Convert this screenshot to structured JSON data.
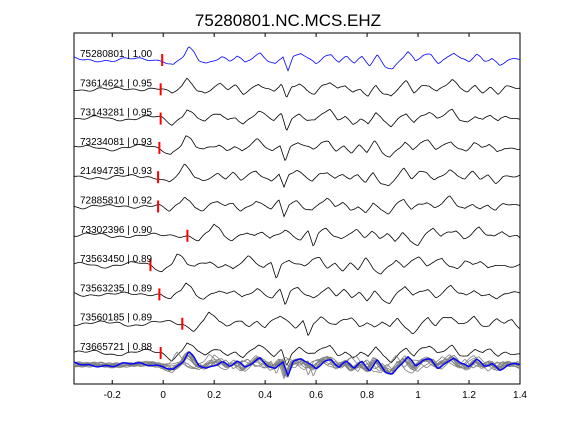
{
  "chart_data": {
    "type": "line",
    "title": "75280801.NC.MCS.EHZ",
    "xlabel": "",
    "ylabel": "",
    "xlim": [
      -0.35,
      1.4
    ],
    "xticks": [
      -0.2,
      0,
      0.2,
      0.4,
      0.6,
      0.8,
      1,
      1.2,
      1.4
    ],
    "xtick_labels": [
      "-0.2",
      "0",
      "0.2",
      "0.4",
      "0.6",
      "0.8",
      "1",
      "1.2",
      "1.4"
    ],
    "grid": false,
    "colors": {
      "master": "#0000ff",
      "trace": "#000000",
      "stack": "#808080",
      "pick": "#ff0000"
    },
    "series": [
      {
        "name": "75280801 | 1.00",
        "pick": -0.004,
        "master": true
      },
      {
        "name": "73614621 | 0.95",
        "pick": -0.01
      },
      {
        "name": "73143281 | 0.95",
        "pick": -0.01
      },
      {
        "name": "73234081 | 0.93",
        "pick": -0.015
      },
      {
        "name": "21494735 | 0.93",
        "pick": -0.02
      },
      {
        "name": "72885810 | 0.92",
        "pick": -0.02
      },
      {
        "name": "73302396 | 0.90",
        "pick": 0.095
      },
      {
        "name": "73563450 | 0.89",
        "pick": -0.05
      },
      {
        "name": "73563235 | 0.89",
        "pick": -0.015
      },
      {
        "name": "73560185 | 0.89",
        "pick": 0.075
      },
      {
        "name": "73665721 | 0.88",
        "pick": -0.01
      }
    ],
    "waveform": {
      "t": [
        -0.35,
        -0.3,
        -0.25,
        -0.2,
        -0.15,
        -0.1,
        -0.05,
        0.0,
        0.04,
        0.08,
        0.1,
        0.12,
        0.14,
        0.17,
        0.2,
        0.23,
        0.26,
        0.29,
        0.32,
        0.35,
        0.38,
        0.41,
        0.44,
        0.47,
        0.49,
        0.51,
        0.54,
        0.57,
        0.6,
        0.63,
        0.66,
        0.69,
        0.72,
        0.75,
        0.78,
        0.81,
        0.84,
        0.87,
        0.9,
        0.93,
        0.96,
        0.99,
        1.02,
        1.05,
        1.08,
        1.11,
        1.14,
        1.17,
        1.2,
        1.23,
        1.26,
        1.29,
        1.32,
        1.35,
        1.4
      ],
      "amp": [
        0.05,
        0.0,
        0.05,
        -0.05,
        0.0,
        0.05,
        0.1,
        0.0,
        -0.4,
        0.2,
        0.8,
        0.5,
        0.0,
        -0.2,
        0.1,
        0.3,
        -0.1,
        0.2,
        -0.3,
        0.1,
        0.5,
        0.1,
        -0.2,
        0.3,
        -0.8,
        0.1,
        0.4,
        0.0,
        -0.2,
        0.3,
        0.5,
        -0.1,
        0.2,
        -0.3,
        0.1,
        -0.4,
        0.4,
        -0.3,
        -0.6,
        0.0,
        0.5,
        -0.2,
        0.3,
        0.4,
        -0.1,
        0.2,
        0.6,
        0.0,
        -0.2,
        0.3,
        -0.1,
        0.2,
        -0.3,
        0.1,
        0.0
      ]
    }
  }
}
